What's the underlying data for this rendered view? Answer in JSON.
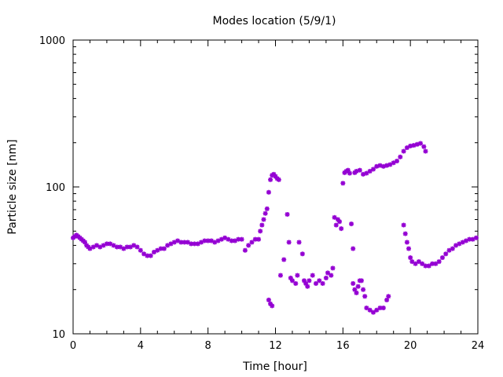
{
  "chart_data": {
    "type": "scatter",
    "title": "Modes location (5/9/1)",
    "xlabel": "Time [hour]",
    "ylabel": "Particle size [nm]",
    "xlim": [
      0,
      24
    ],
    "ylim": [
      10,
      1000
    ],
    "yscale": "log",
    "grid": false,
    "marker_color": "#9400d3",
    "x_ticks": [
      0,
      4,
      8,
      12,
      16,
      20,
      24
    ],
    "x_tick_labels": [
      "0",
      "4",
      "8",
      "12",
      "16",
      "20",
      "24"
    ],
    "y_ticks": [
      10,
      100,
      1000
    ],
    "y_tick_labels": [
      "10",
      "100",
      "1000"
    ],
    "series": [
      {
        "points": [
          [
            0.0,
            45
          ],
          [
            0.1,
            46
          ],
          [
            0.2,
            47
          ],
          [
            0.3,
            46
          ],
          [
            0.4,
            45
          ],
          [
            0.5,
            44
          ],
          [
            0.6,
            43
          ],
          [
            0.7,
            42
          ],
          [
            0.8,
            40
          ],
          [
            0.9,
            39
          ],
          [
            1.0,
            38
          ],
          [
            1.2,
            39
          ],
          [
            1.4,
            40
          ],
          [
            1.6,
            39
          ],
          [
            1.8,
            40
          ],
          [
            2.0,
            41
          ],
          [
            2.2,
            41
          ],
          [
            2.4,
            40
          ],
          [
            2.6,
            39
          ],
          [
            2.8,
            39
          ],
          [
            3.0,
            38
          ],
          [
            3.2,
            39
          ],
          [
            3.4,
            39
          ],
          [
            3.6,
            40
          ],
          [
            3.8,
            39
          ],
          [
            4.0,
            37
          ],
          [
            4.2,
            35
          ],
          [
            4.4,
            34
          ],
          [
            4.6,
            34
          ],
          [
            4.8,
            36
          ],
          [
            5.0,
            37
          ],
          [
            5.2,
            38
          ],
          [
            5.4,
            38
          ],
          [
            5.6,
            40
          ],
          [
            5.8,
            41
          ],
          [
            6.0,
            42
          ],
          [
            6.2,
            43
          ],
          [
            6.4,
            42
          ],
          [
            6.6,
            42
          ],
          [
            6.8,
            42
          ],
          [
            7.0,
            41
          ],
          [
            7.2,
            41
          ],
          [
            7.4,
            41
          ],
          [
            7.6,
            42
          ],
          [
            7.8,
            43
          ],
          [
            8.0,
            43
          ],
          [
            8.2,
            43
          ],
          [
            8.4,
            42
          ],
          [
            8.6,
            43
          ],
          [
            8.8,
            44
          ],
          [
            9.0,
            45
          ],
          [
            9.2,
            44
          ],
          [
            9.4,
            43
          ],
          [
            9.6,
            43
          ],
          [
            9.8,
            44
          ],
          [
            10.0,
            44
          ],
          [
            10.2,
            37
          ],
          [
            10.4,
            40
          ],
          [
            10.6,
            42
          ],
          [
            10.8,
            44
          ],
          [
            11.0,
            44
          ],
          [
            11.1,
            50
          ],
          [
            11.2,
            55
          ],
          [
            11.3,
            60
          ],
          [
            11.4,
            66
          ],
          [
            11.5,
            71
          ],
          [
            11.6,
            92
          ],
          [
            11.7,
            112
          ],
          [
            11.8,
            120
          ],
          [
            11.9,
            122
          ],
          [
            12.0,
            118
          ],
          [
            12.1,
            114
          ],
          [
            12.2,
            112
          ],
          [
            11.6,
            17
          ],
          [
            11.7,
            16
          ],
          [
            11.8,
            15.5
          ],
          [
            12.3,
            25
          ],
          [
            12.5,
            32
          ],
          [
            12.7,
            65
          ],
          [
            12.8,
            42
          ],
          [
            12.9,
            24
          ],
          [
            13.0,
            23
          ],
          [
            13.2,
            22
          ],
          [
            13.3,
            25
          ],
          [
            13.4,
            42
          ],
          [
            13.6,
            35
          ],
          [
            13.7,
            23
          ],
          [
            13.8,
            22
          ],
          [
            13.9,
            21
          ],
          [
            14.0,
            23
          ],
          [
            14.2,
            25
          ],
          [
            14.4,
            22
          ],
          [
            14.6,
            23
          ],
          [
            14.8,
            22
          ],
          [
            15.0,
            24
          ],
          [
            15.1,
            26
          ],
          [
            15.3,
            25
          ],
          [
            15.4,
            28
          ],
          [
            15.5,
            62
          ],
          [
            15.6,
            55
          ],
          [
            15.7,
            60
          ],
          [
            15.8,
            58
          ],
          [
            15.9,
            52
          ],
          [
            16.0,
            106
          ],
          [
            16.1,
            125
          ],
          [
            16.2,
            128
          ],
          [
            16.3,
            130
          ],
          [
            16.4,
            124
          ],
          [
            16.5,
            56
          ],
          [
            16.6,
            38
          ],
          [
            16.6,
            22
          ],
          [
            16.7,
            20
          ],
          [
            16.8,
            19
          ],
          [
            16.9,
            21
          ],
          [
            17.0,
            23
          ],
          [
            17.1,
            23
          ],
          [
            17.2,
            20
          ],
          [
            17.3,
            18
          ],
          [
            17.4,
            15
          ],
          [
            17.6,
            14.5
          ],
          [
            17.8,
            14
          ],
          [
            18.0,
            14.5
          ],
          [
            18.2,
            15
          ],
          [
            18.4,
            15
          ],
          [
            18.6,
            17
          ],
          [
            18.7,
            18
          ],
          [
            16.7,
            125
          ],
          [
            16.8,
            128
          ],
          [
            17.0,
            130
          ],
          [
            17.2,
            122
          ],
          [
            17.4,
            124
          ],
          [
            17.6,
            128
          ],
          [
            17.8,
            132
          ],
          [
            18.0,
            138
          ],
          [
            18.2,
            140
          ],
          [
            18.4,
            138
          ],
          [
            18.6,
            140
          ],
          [
            18.8,
            142
          ],
          [
            19.0,
            146
          ],
          [
            19.2,
            150
          ],
          [
            19.4,
            160
          ],
          [
            19.6,
            175
          ],
          [
            19.8,
            185
          ],
          [
            20.0,
            190
          ],
          [
            20.2,
            192
          ],
          [
            20.4,
            195
          ],
          [
            20.6,
            198
          ],
          [
            20.8,
            188
          ],
          [
            20.9,
            175
          ],
          [
            19.6,
            55
          ],
          [
            19.7,
            48
          ],
          [
            19.8,
            42
          ],
          [
            19.9,
            38
          ],
          [
            20.0,
            33
          ],
          [
            20.1,
            31
          ],
          [
            20.3,
            30
          ],
          [
            20.5,
            31
          ],
          [
            20.7,
            30
          ],
          [
            20.9,
            29
          ],
          [
            21.1,
            29
          ],
          [
            21.3,
            30
          ],
          [
            21.5,
            30
          ],
          [
            21.7,
            31
          ],
          [
            21.9,
            33
          ],
          [
            22.1,
            35
          ],
          [
            22.3,
            37
          ],
          [
            22.5,
            38
          ],
          [
            22.7,
            40
          ],
          [
            22.9,
            41
          ],
          [
            23.1,
            42
          ],
          [
            23.3,
            43
          ],
          [
            23.5,
            44
          ],
          [
            23.7,
            44
          ],
          [
            23.9,
            45
          ]
        ]
      }
    ]
  }
}
